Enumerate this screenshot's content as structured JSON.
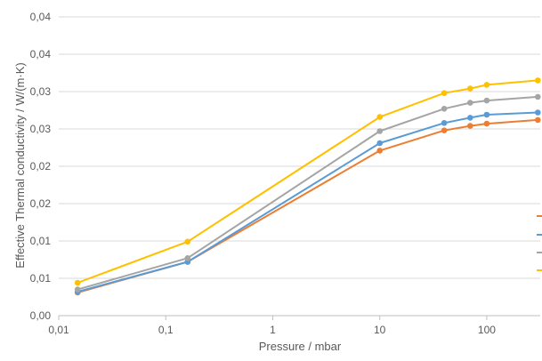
{
  "chart_data": {
    "type": "line",
    "xlabel": "Pressure / mbar",
    "ylabel": "Effective Thermal conductivity / W/(m·K)",
    "x_scale": "log",
    "xlim": [
      0.01,
      316
    ],
    "ylim": [
      0,
      0.04
    ],
    "x_ticks": [
      {
        "value": 0.01,
        "label": "0,01"
      },
      {
        "value": 0.1,
        "label": "0,1"
      },
      {
        "value": 1,
        "label": "1"
      },
      {
        "value": 10,
        "label": "10"
      },
      {
        "value": 100,
        "label": "100"
      }
    ],
    "y_ticks": [
      {
        "value": 0,
        "label": "0,00"
      },
      {
        "value": 0.005,
        "label": "0,01"
      },
      {
        "value": 0.01,
        "label": "0,01"
      },
      {
        "value": 0.015,
        "label": "0,02"
      },
      {
        "value": 0.02,
        "label": "0,02"
      },
      {
        "value": 0.025,
        "label": "0,03"
      },
      {
        "value": 0.03,
        "label": "0,03"
      },
      {
        "value": 0.035,
        "label": "0,04"
      },
      {
        "value": 0.04,
        "label": "0,04"
      }
    ],
    "grid": {
      "x": false,
      "y": true
    },
    "legend": "right",
    "series": [
      {
        "color": "#ED7D31",
        "points": [
          [
            0.015,
            0.0031
          ],
          [
            0.16,
            0.0072
          ],
          [
            10,
            0.0221
          ],
          [
            40,
            0.0248
          ],
          [
            70,
            0.0254
          ],
          [
            100,
            0.0257
          ],
          [
            300,
            0.0262
          ]
        ]
      },
      {
        "color": "#5B9BD5",
        "points": [
          [
            0.015,
            0.0032
          ],
          [
            0.16,
            0.0072
          ],
          [
            10,
            0.0231
          ],
          [
            40,
            0.0258
          ],
          [
            70,
            0.0265
          ],
          [
            100,
            0.0269
          ],
          [
            300,
            0.0272
          ]
        ]
      },
      {
        "color": "#A5A5A5",
        "points": [
          [
            0.015,
            0.0035
          ],
          [
            0.16,
            0.0077
          ],
          [
            10,
            0.0247
          ],
          [
            40,
            0.0277
          ],
          [
            70,
            0.0285
          ],
          [
            100,
            0.0288
          ],
          [
            300,
            0.0293
          ]
        ]
      },
      {
        "color": "#FFC000",
        "points": [
          [
            0.015,
            0.0044
          ],
          [
            0.16,
            0.0099
          ],
          [
            10,
            0.0266
          ],
          [
            40,
            0.0298
          ],
          [
            70,
            0.0304
          ],
          [
            100,
            0.0309
          ],
          [
            300,
            0.0315
          ]
        ]
      }
    ]
  }
}
